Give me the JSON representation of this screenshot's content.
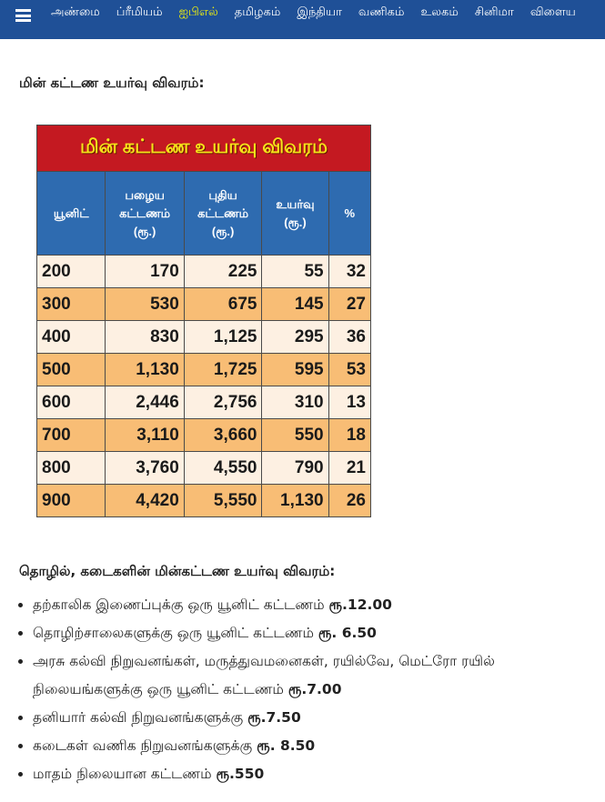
{
  "nav": {
    "items": [
      "அண்மை",
      "ப்ரீமியம்",
      "ஐபிஎல்",
      "தமிழகம்",
      "இந்தியா",
      "வணிகம்",
      "உலகம்",
      "சினிமா",
      "விளைய"
    ],
    "active_index": 2,
    "active_color": "#f1f10c",
    "bg_color": "#1f5097"
  },
  "heading1": "மின் கட்டண உயர்வு விவரம்:",
  "table": {
    "title": "மின் கட்டண உயர்வு விவரம்",
    "headers": [
      "யூனிட்",
      "பழைய கட்டணம் (ரூ.)",
      "புதிய கட்டணம் (ரூ.)",
      "உயர்வு (ரூ.)",
      "%"
    ],
    "rows": [
      [
        "200",
        "170",
        "225",
        "55",
        "32"
      ],
      [
        "300",
        "530",
        "675",
        "145",
        "27"
      ],
      [
        "400",
        "830",
        "1,125",
        "295",
        "36"
      ],
      [
        "500",
        "1,130",
        "1,725",
        "595",
        "53"
      ],
      [
        "600",
        "2,446",
        "2,756",
        "310",
        "13"
      ],
      [
        "700",
        "3,110",
        "3,660",
        "550",
        "18"
      ],
      [
        "800",
        "3,760",
        "4,550",
        "790",
        "21"
      ],
      [
        "900",
        "4,420",
        "5,550",
        "1,130",
        "26"
      ]
    ]
  },
  "heading2": "தொழில், கடைகளின் மின்கட்டண உயர்வு விவரம்:",
  "bullets": [
    {
      "text": "தற்காலிக இணைப்புக்கு ஒரு யூனிட் கட்டணம் ",
      "bold": "ரூ.12.00"
    },
    {
      "text": "தொழிற்சாலைகளுக்கு ஒரு யூனிட் கட்டணம் ",
      "bold": "ரூ. 6.50"
    },
    {
      "text": "அரசு கல்வி நிறுவனங்கள், மருத்துவமனைகள், ரயில்வே, மெட்ரோ ரயில் நிலையங்களுக்கு ஒரு யூனிட் கட்டணம் ",
      "bold": "ரூ.7.00"
    },
    {
      "text": "தனியார் கல்வி நிறுவனங்களுக்கு ",
      "bold": "ரூ.7.50"
    },
    {
      "text": "கடைகள் வணிக நிறுவனங்களுக்கு ",
      "bold": "ரூ. 8.50"
    },
    {
      "text": "மாதம் நிலையான கட்டணம் ",
      "bold": "ரூ.550"
    }
  ]
}
